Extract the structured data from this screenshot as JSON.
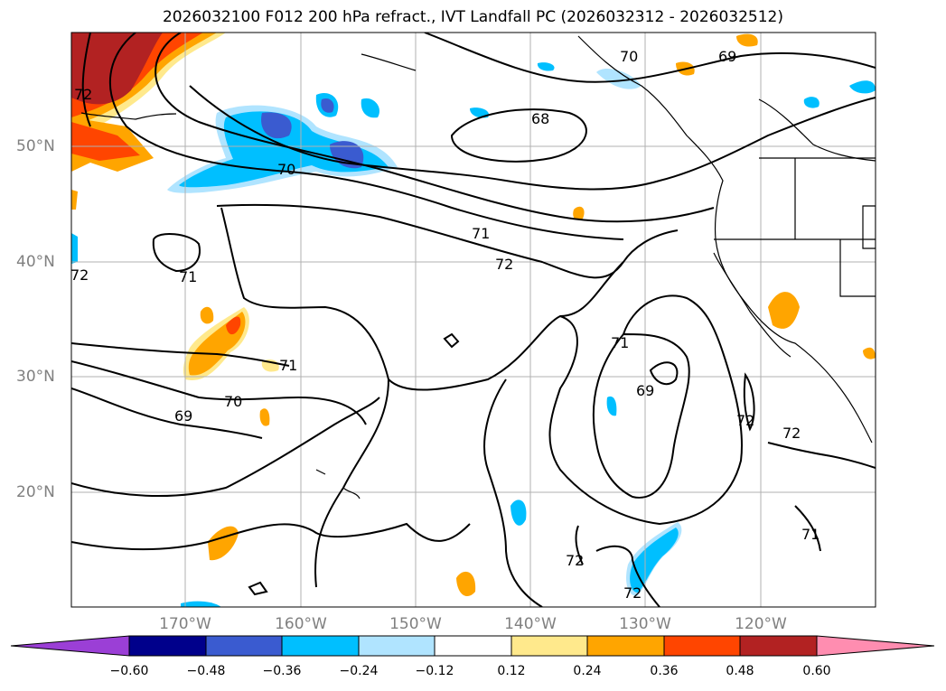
{
  "title": "2026032100 F012 200 hPa refract., IVT Landfall PC (2026032312 - 2026032512)",
  "lat_labels": [
    "50°N",
    "40°N",
    "30°N",
    "20°N"
  ],
  "lon_labels": [
    "170°W",
    "160°W",
    "150°W",
    "140°W",
    "130°W",
    "120°W"
  ],
  "contour_labels": [
    "68",
    "69",
    "69",
    "69",
    "70",
    "70",
    "70",
    "71",
    "71",
    "71",
    "71",
    "71",
    "72",
    "72",
    "72",
    "72",
    "72",
    "72",
    "72"
  ],
  "colorbar": {
    "ticks": [
      "−0.60",
      "−0.48",
      "−0.36",
      "−0.24",
      "−0.12",
      "0.12",
      "0.24",
      "0.36",
      "0.48",
      "0.60"
    ],
    "colors": [
      "#9b3fd6",
      "#00008b",
      "#3a5bd0",
      "#00bfff",
      "#b0e4ff",
      "#ffffff",
      "#ffe98c",
      "#ffa500",
      "#ff4500",
      "#b22222",
      "#ff8db0"
    ]
  }
}
